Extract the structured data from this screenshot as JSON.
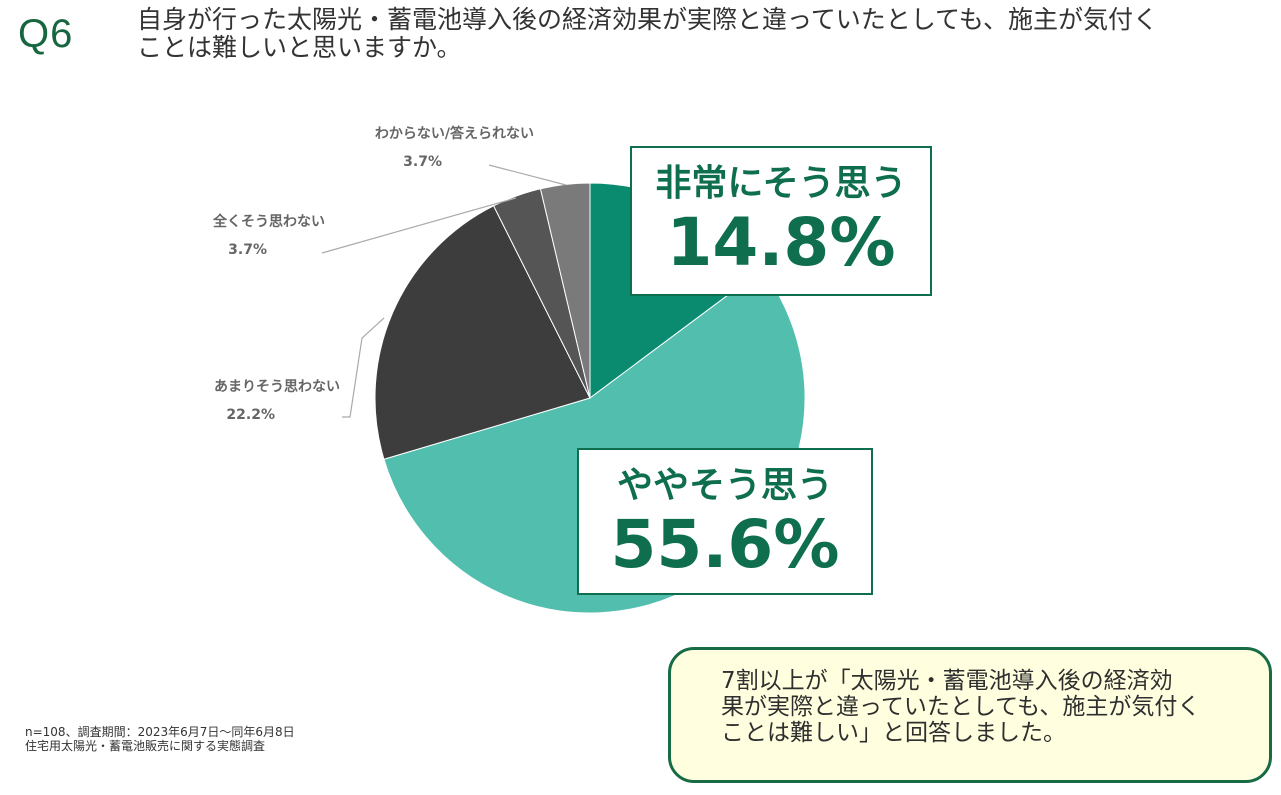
{
  "question": {
    "number": "Q6",
    "line1": "自身が行った太陽光・蓄電池導入後の経済効果が実際と違っていたとしても、施主が気付く",
    "line2": "ことは難しいと思いますか。"
  },
  "chart_data": {
    "type": "pie",
    "start_angle_deg": 0,
    "direction": "clockwise",
    "slices": [
      {
        "label": "非常にそう思う",
        "value": 14.8,
        "value_text": "14.8%",
        "color": "#0a8a6f"
      },
      {
        "label": "ややそう思う",
        "value": 55.6,
        "value_text": "55.6%",
        "color": "#52bfae"
      },
      {
        "label": "あまりそう思わない",
        "value": 22.2,
        "value_text": "22.2%",
        "color": "#3d3d3d"
      },
      {
        "label": "全くそう思わない",
        "value": 3.7,
        "value_text": "3.7%",
        "color": "#555555"
      },
      {
        "label": "わからない/答えられない",
        "value": 3.7,
        "value_text": "3.7%",
        "color": "#7a7a7a"
      }
    ]
  },
  "note": {
    "line1": "n=108、調査期間：2023年6月7日～同年6月8日",
    "line2": "住宅用太陽光・蓄電池販売に関する実態調査"
  },
  "summary": {
    "line1": "7割以上が「太陽光・蓄電池導入後の経済効",
    "line2": "果が実際と違っていたとしても、施主が気付く",
    "line3": "ことは難しい」と回答しました。"
  },
  "colors": {
    "brand_green": "#17663f",
    "box_border": "#0e6e4e",
    "summary_bg": "#ffffe0",
    "leader_line": "#aaaaaa"
  }
}
